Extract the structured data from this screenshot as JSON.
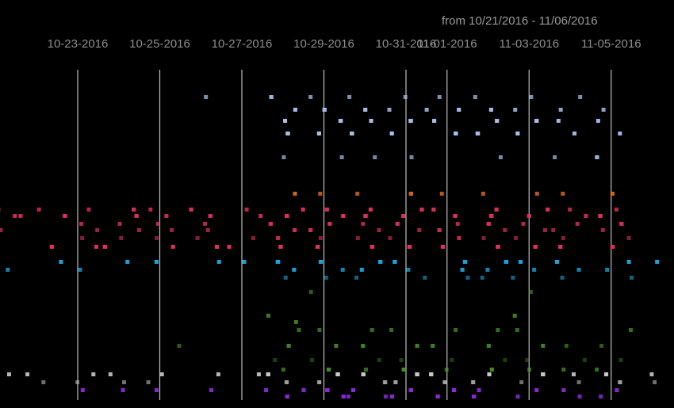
{
  "range_title": "from 10/21/2016 - 11/06/2016",
  "chart_data": {
    "type": "scatter",
    "title": "from 10/21/2016 - 11/06/2016",
    "x_ticks": [
      {
        "label": "10-23-2016",
        "date": "2016-10-23"
      },
      {
        "label": "10-25-2016",
        "date": "2016-10-25"
      },
      {
        "label": "10-27-2016",
        "date": "2016-10-27"
      },
      {
        "label": "10-29-2016",
        "date": "2016-10-29"
      },
      {
        "label": "10-31-2016",
        "date": "2016-10-31"
      },
      {
        "label": "11-01-2016",
        "date": "2016-11-01"
      },
      {
        "label": "11-03-2016",
        "date": "2016-11-03"
      },
      {
        "label": "11-05-2016",
        "date": "2016-11-05"
      }
    ],
    "xlim": [
      "2016-10-21",
      "2016-11-06"
    ],
    "grid": "vertical lines at ticks",
    "series": [
      {
        "color": "#a8c0e8",
        "rows": [
          {
            "pts": [
              "2016-10-26",
              "2016-10-28",
              "2016-10-28",
              "2016-10-29",
              "2016-10-30",
              "2016-10-31",
              "2016-11-01",
              "2016-11-02",
              "2016-11-03",
              "2016-11-04"
            ],
            "opacity": 0.75
          },
          {
            "pts": [
              "2016-10-28",
              "2016-10-28",
              "2016-10-29",
              "2016-10-29",
              "2016-10-30",
              "2016-10-30",
              "2016-10-31",
              "2016-10-31",
              "2016-11-01",
              "2016-11-01",
              "2016-11-02",
              "2016-11-02",
              "2016-11-03",
              "2016-11-04",
              "2016-11-05"
            ],
            "opacity": 0.85
          },
          {
            "pts": [
              "2016-10-28",
              "2016-10-28",
              "2016-10-29",
              "2016-10-29",
              "2016-10-30",
              "2016-10-30",
              "2016-10-31",
              "2016-10-31",
              "2016-11-01",
              "2016-11-01",
              "2016-11-02",
              "2016-11-02",
              "2016-11-03",
              "2016-11-03",
              "2016-11-04",
              "2016-11-05"
            ],
            "opacity": 0.95
          },
          {
            "pts": [
              "2016-10-28",
              "2016-10-28",
              "2016-10-29",
              "2016-10-29",
              "2016-10-30",
              "2016-10-30",
              "2016-10-31",
              "2016-10-31",
              "2016-11-01",
              "2016-11-01",
              "2016-11-02",
              "2016-11-02",
              "2016-11-03",
              "2016-11-03",
              "2016-11-04",
              "2016-11-05"
            ],
            "opacity": 0.95
          },
          {
            "pts": [
              "2016-10-28",
              "2016-10-29",
              "2016-10-30",
              "2016-10-31",
              "2016-11-02",
              "2016-11-04",
              "2016-11-05",
              "2016-11-05"
            ],
            "opacity": 0.7
          }
        ]
      },
      {
        "color": "#d4661e",
        "rows": [
          {
            "pts": [
              "2016-10-28",
              "2016-10-28",
              "2016-10-29",
              "2016-10-30",
              "2016-10-31",
              "2016-10-31",
              "2016-11-01",
              "2016-11-02",
              "2016-11-03",
              "2016-11-04",
              "2016-11-05",
              "2016-11-05"
            ],
            "opacity": 0.85
          }
        ]
      },
      {
        "color": "#e0305a",
        "rows": [
          {
            "pts": [
              "2016-10-21",
              "2016-10-22",
              "2016-10-23",
              "2016-10-24",
              "2016-10-24",
              "2016-10-25",
              "2016-10-26",
              "2016-10-26",
              "2016-10-27",
              "2016-10-28",
              "2016-10-28",
              "2016-10-29",
              "2016-10-29",
              "2016-10-30",
              "2016-10-30",
              "2016-10-31",
              "2016-10-31",
              "2016-11-01",
              "2016-11-01",
              "2016-11-02",
              "2016-11-02",
              "2016-11-03",
              "2016-11-03",
              "2016-11-04",
              "2016-11-05"
            ],
            "opacity": 0.8
          },
          {
            "pts": [
              "2016-10-21",
              "2016-10-22",
              "2016-10-23",
              "2016-10-23",
              "2016-10-24",
              "2016-10-24",
              "2016-10-25",
              "2016-10-26",
              "2016-10-26",
              "2016-10-27",
              "2016-10-28",
              "2016-10-28",
              "2016-10-28",
              "2016-10-29",
              "2016-10-29",
              "2016-10-30",
              "2016-10-30",
              "2016-10-31",
              "2016-10-31",
              "2016-11-01",
              "2016-11-01",
              "2016-11-02",
              "2016-11-02",
              "2016-11-03",
              "2016-11-03",
              "2016-11-04",
              "2016-11-05",
              "2016-11-05"
            ],
            "opacity": 0.9
          },
          {
            "pts": [
              "2016-10-23",
              "2016-10-24",
              "2016-10-25",
              "2016-10-26",
              "2016-10-28",
              "2016-10-28",
              "2016-10-29",
              "2016-10-29",
              "2016-10-30",
              "2016-10-31",
              "2016-10-31",
              "2016-11-01",
              "2016-11-02",
              "2016-11-02",
              "2016-11-03",
              "2016-11-04",
              "2016-11-05",
              "2016-11-05"
            ],
            "opacity": 0.8
          },
          {
            "pts": [
              "2016-10-21",
              "2016-10-23",
              "2016-10-24",
              "2016-10-25",
              "2016-10-26",
              "2016-10-28",
              "2016-10-28",
              "2016-10-29",
              "2016-10-29",
              "2016-10-30",
              "2016-10-31",
              "2016-11-01",
              "2016-11-01",
              "2016-11-02",
              "2016-11-03",
              "2016-11-04",
              "2016-11-05"
            ],
            "opacity": 0.7
          },
          {
            "pts": [
              "2016-10-21",
              "2016-10-23",
              "2016-10-24",
              "2016-10-25",
              "2016-10-26",
              "2016-10-27",
              "2016-10-28",
              "2016-10-28",
              "2016-10-29",
              "2016-10-30",
              "2016-10-31",
              "2016-11-01",
              "2016-11-01",
              "2016-11-02",
              "2016-11-03",
              "2016-11-04",
              "2016-11-05"
            ],
            "opacity": 0.6
          },
          {
            "pts": [
              "2016-10-22",
              "2016-10-22",
              "2016-10-23",
              "2016-10-24",
              "2016-10-24",
              "2016-10-25",
              "2016-10-26",
              "2016-10-27",
              "2016-10-28",
              "2016-10-28",
              "2016-10-28",
              "2016-10-29",
              "2016-10-29",
              "2016-10-29",
              "2016-10-30",
              "2016-10-30",
              "2016-10-30",
              "2016-10-31",
              "2016-10-31",
              "2016-10-31",
              "2016-11-01",
              "2016-11-01",
              "2016-11-01",
              "2016-11-02",
              "2016-11-02",
              "2016-11-02",
              "2016-11-03",
              "2016-11-03",
              "2016-11-03",
              "2016-11-04",
              "2016-11-04",
              "2016-11-05",
              "2016-11-05"
            ],
            "opacity": 1.0
          }
        ]
      },
      {
        "color": "#1ea0d8",
        "rows": [
          {
            "pts": [
              "2016-10-23",
              "2016-10-24",
              "2016-10-25",
              "2016-10-25",
              "2016-10-26",
              "2016-10-27",
              "2016-10-28",
              "2016-10-28",
              "2016-10-28",
              "2016-10-29",
              "2016-10-29",
              "2016-10-29",
              "2016-10-30",
              "2016-10-30",
              "2016-10-30",
              "2016-10-31",
              "2016-10-31",
              "2016-10-31",
              "2016-11-01",
              "2016-11-01",
              "2016-11-01",
              "2016-11-02",
              "2016-11-02",
              "2016-11-02",
              "2016-11-03",
              "2016-11-03",
              "2016-11-04",
              "2016-11-04",
              "2016-11-05",
              "2016-11-06"
            ],
            "opacity": 1.0
          },
          {
            "pts": [
              "2016-10-21",
              "2016-10-23",
              "2016-10-28",
              "2016-10-28",
              "2016-10-29",
              "2016-10-30",
              "2016-10-30",
              "2016-10-31",
              "2016-11-01",
              "2016-11-01",
              "2016-11-02",
              "2016-11-03",
              "2016-11-04",
              "2016-11-05"
            ],
            "opacity": 0.8
          },
          {
            "pts": [
              "2016-10-28",
              "2016-10-29",
              "2016-10-30",
              "2016-10-31",
              "2016-11-01",
              "2016-11-02",
              "2016-11-03",
              "2016-11-04",
              "2016-11-05"
            ],
            "opacity": 0.6
          }
        ]
      },
      {
        "color": "#4a9a2a",
        "rows": [
          {
            "pts": [
              "2016-10-29",
              "2016-11-03"
            ],
            "opacity": 0.6
          },
          {
            "pts": [
              "2016-10-28",
              "2016-11-03"
            ],
            "opacity": 0.8
          },
          {
            "pts": [
              "2016-10-28"
            ],
            "opacity": 0.8
          },
          {
            "pts": [
              "2016-10-28",
              "2016-10-29",
              "2016-10-30",
              "2016-10-31",
              "2016-11-01",
              "2016-11-02",
              "2016-11-03",
              "2016-11-05"
            ],
            "opacity": 0.7
          },
          {
            "pts": [
              "2016-10-25",
              "2016-10-28",
              "2016-10-28",
              "2016-10-29",
              "2016-10-29",
              "2016-10-30",
              "2016-10-30",
              "2016-10-31",
              "2016-10-31",
              "2016-11-01",
              "2016-11-01",
              "2016-11-02",
              "2016-11-02",
              "2016-11-03",
              "2016-11-03",
              "2016-11-04",
              "2016-11-05"
            ],
            "opacity": 0.6
          },
          {
            "pts": [
              "2016-10-28",
              "2016-10-29",
              "2016-10-30",
              "2016-10-31",
              "2016-11-01",
              "2016-11-02",
              "2016-11-03",
              "2016-11-04",
              "2016-11-05"
            ],
            "opacity": 0.4
          },
          {
            "pts": [
              "2016-10-28",
              "2016-10-29",
              "2016-10-29",
              "2016-10-30",
              "2016-10-31",
              "2016-10-31",
              "2016-11-01",
              "2016-11-02",
              "2016-11-02",
              "2016-11-03",
              "2016-11-04",
              "2016-11-05"
            ],
            "opacity": 0.7
          }
        ]
      },
      {
        "color": "#c8c8c8",
        "rows": [
          {
            "pts": [
              "2016-10-21",
              "2016-10-22",
              "2016-10-23",
              "2016-10-24",
              "2016-10-25",
              "2016-10-26",
              "2016-10-27",
              "2016-10-28",
              "2016-10-28",
              "2016-10-28",
              "2016-10-29",
              "2016-10-29",
              "2016-10-29",
              "2016-10-30",
              "2016-10-30",
              "2016-10-30",
              "2016-10-31",
              "2016-10-31",
              "2016-10-31",
              "2016-11-01",
              "2016-11-01",
              "2016-11-01",
              "2016-11-02",
              "2016-11-02",
              "2016-11-03",
              "2016-11-03",
              "2016-11-04",
              "2016-11-05",
              "2016-11-05",
              "2016-11-06"
            ],
            "opacity": 0.9
          },
          {
            "pts": [
              "2016-10-22",
              "2016-10-23",
              "2016-10-24",
              "2016-10-25",
              "2016-10-28",
              "2016-10-28",
              "2016-10-29",
              "2016-10-29",
              "2016-10-30",
              "2016-10-30",
              "2016-10-31",
              "2016-10-31",
              "2016-11-01",
              "2016-11-01",
              "2016-11-02",
              "2016-11-02",
              "2016-11-03",
              "2016-11-04",
              "2016-11-05",
              "2016-11-05",
              "2016-11-06"
            ],
            "opacity": 0.55
          }
        ]
      },
      {
        "color": "#8a2ad8",
        "rows": [
          {
            "pts": [
              "2016-10-23",
              "2016-10-24",
              "2016-10-25",
              "2016-10-26",
              "2016-10-28",
              "2016-10-28",
              "2016-10-29",
              "2016-10-29",
              "2016-10-30",
              "2016-10-30",
              "2016-10-31",
              "2016-10-31",
              "2016-11-01",
              "2016-11-01",
              "2016-11-02",
              "2016-11-03",
              "2016-11-04",
              "2016-11-05"
            ],
            "opacity": 0.95
          },
          {
            "pts": [
              "2016-10-28",
              "2016-10-28",
              "2016-10-29",
              "2016-10-29",
              "2016-10-30",
              "2016-10-30",
              "2016-10-31",
              "2016-10-31",
              "2016-11-01",
              "2016-11-01",
              "2016-11-02",
              "2016-11-02",
              "2016-11-03",
              "2016-11-04",
              "2016-11-05"
            ],
            "opacity": 0.85
          }
        ]
      }
    ]
  }
}
